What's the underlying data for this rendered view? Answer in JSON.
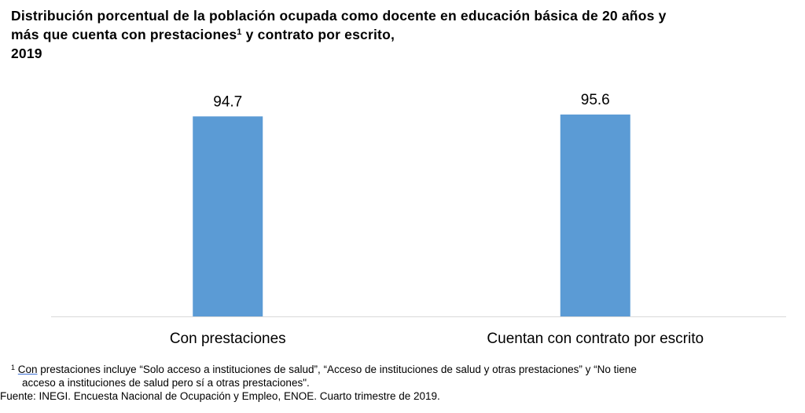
{
  "chart_data": {
    "type": "bar",
    "title_line1": "Distribución porcentual de la población ocupada como docente en educación básica de 20 años y",
    "title_line2_a": "más que cuenta con prestaciones",
    "title_sup": "1",
    "title_line2_b": " y contrato por escrito,",
    "title_line3": "2019",
    "categories": [
      "Con prestaciones",
      "Cuentan con contrato por escrito"
    ],
    "values": [
      94.7,
      95.6
    ],
    "data_labels": [
      "94.7",
      "95.6"
    ],
    "ylim": [
      0,
      100
    ],
    "xlabel": "",
    "ylabel": "",
    "grid": false,
    "bar_color": "#5b9bd5"
  },
  "footnote": {
    "sup": "1",
    "word": "Con",
    "line1": " prestaciones incluye “Solo acceso a instituciones de salud”, “Acceso de instituciones de salud y otras prestaciones” y “No tiene",
    "line2": "acceso a instituciones de salud pero sí a otras prestaciones\"."
  },
  "source": "Fuente: INEGI. Encuesta Nacional de Ocupación y Empleo, ENOE. Cuarto trimestre de 2019."
}
